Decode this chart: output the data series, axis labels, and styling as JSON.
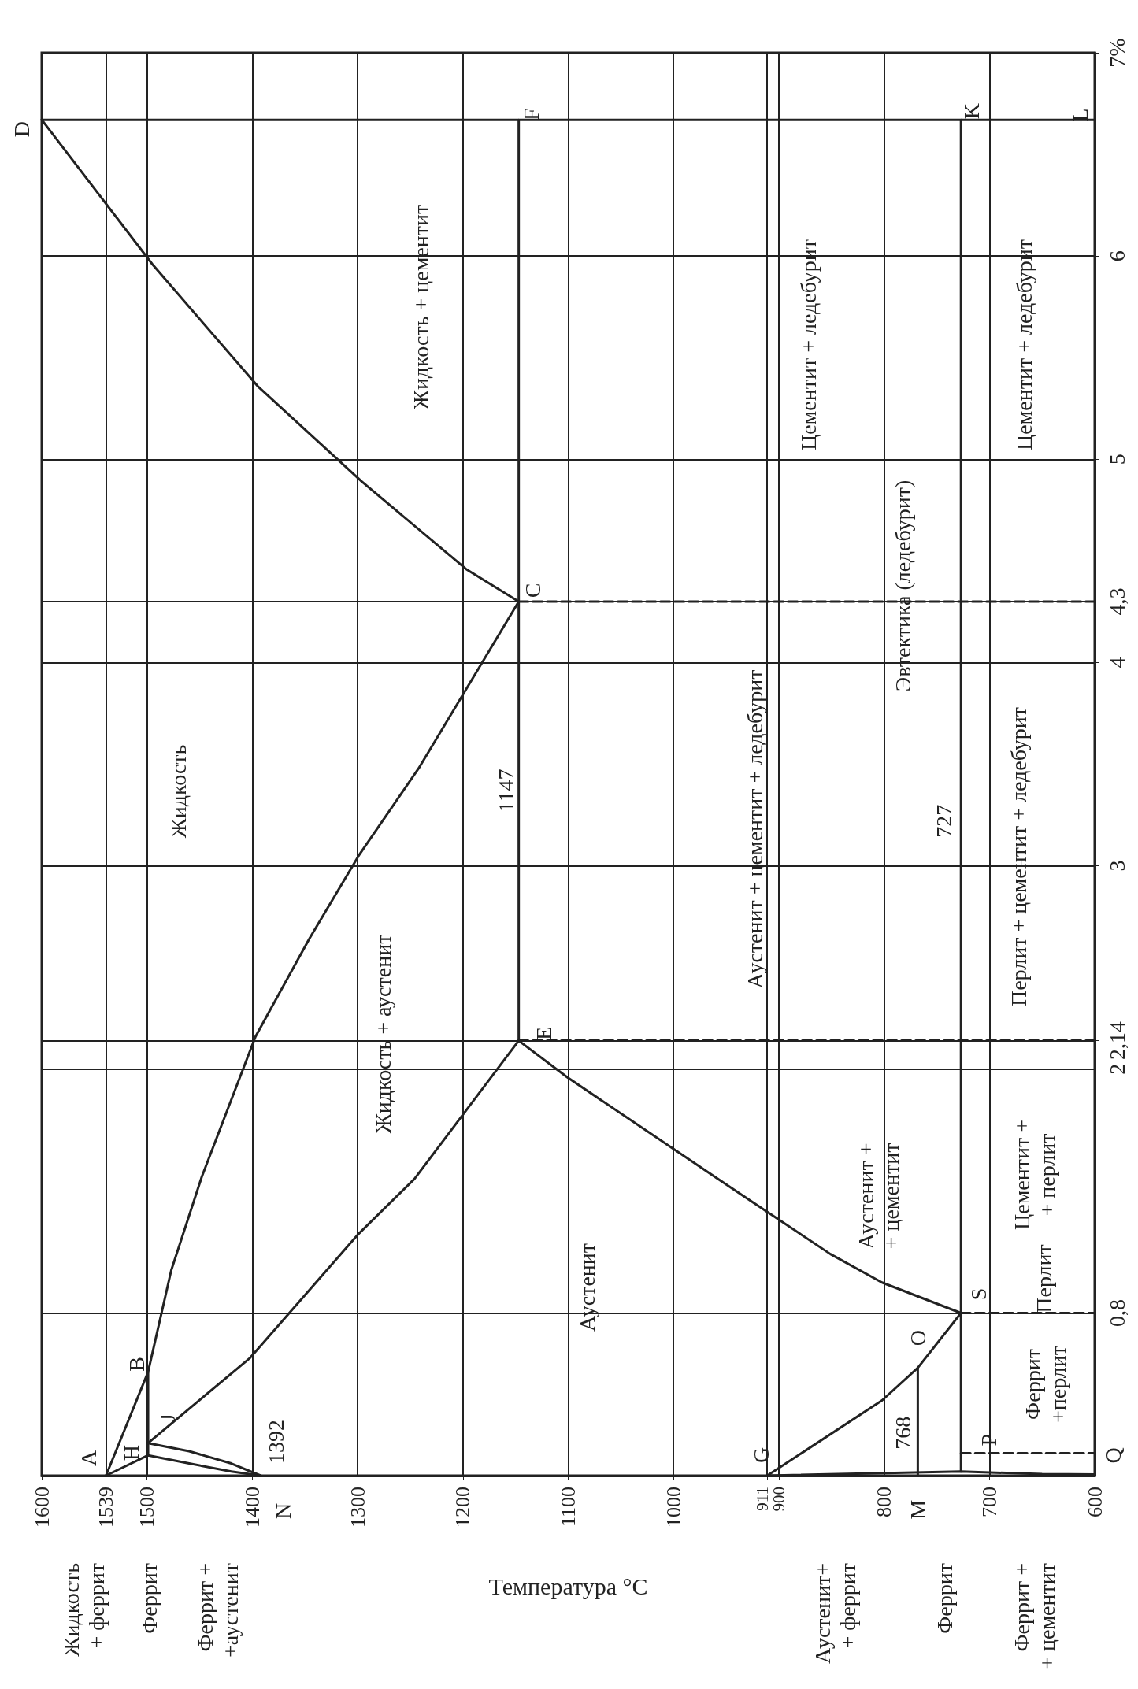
{
  "chart_data": {
    "type": "line",
    "xlabel": "Температура °С",
    "xlim": [
      1600,
      600
    ],
    "ylim": [
      0,
      7
    ],
    "xticks": [
      1600,
      1539,
      1500,
      1400,
      1300,
      1200,
      1100,
      1000,
      911,
      900,
      800,
      700,
      600
    ],
    "yticks": [
      {
        "value": 0.8,
        "label": "0,8"
      },
      2,
      {
        "value": 2.14,
        "label": "2,14"
      },
      3,
      4,
      {
        "value": 4.3,
        "label": "4,3"
      },
      5,
      6,
      {
        "value": 7,
        "label": "7%"
      }
    ],
    "grid": true,
    "marker": "none",
    "series": [
      {
        "color": "#222222",
        "x": [
          1539,
          1499,
          1477,
          1448,
          1397,
          1346,
          1299,
          1242,
          1147
        ],
        "values": [
          0,
          0.51,
          1.01,
          1.47,
          2.16,
          2.64,
          3.05,
          3.48,
          4.3
        ]
      },
      {
        "color": "#222222",
        "x": [
          1147,
          1197,
          1296,
          1395,
          1495,
          1600
        ],
        "values": [
          4.3,
          4.46,
          4.89,
          5.36,
          5.96,
          6.67
        ]
      },
      {
        "color": "#222222",
        "x": [
          1539,
          1499
        ],
        "values": [
          0,
          0.1
        ]
      },
      {
        "color": "#222222",
        "x": [
          1499,
          1499
        ],
        "values": [
          0.1,
          0.51
        ]
      },
      {
        "color": "#222222",
        "x": [
          1499,
          1402,
          1299,
          1246,
          1147
        ],
        "values": [
          0.16,
          0.58,
          1.19,
          1.46,
          2.14
        ]
      },
      {
        "color": "#222222",
        "x": [
          1499,
          1460,
          1420,
          1392
        ],
        "values": [
          0.1,
          0.06,
          0.02,
          0
        ]
      },
      {
        "color": "#222222",
        "x": [
          1499,
          1460,
          1420,
          1392
        ],
        "values": [
          0.16,
          0.12,
          0.06,
          0
        ]
      },
      {
        "color": "#222222",
        "x": [
          1147,
          1147
        ],
        "values": [
          2.14,
          6.67
        ]
      },
      {
        "color": "#222222",
        "x": [
          1147,
          1101,
          958,
          851,
          802,
          727
        ],
        "values": [
          2.14,
          1.96,
          1.46,
          1.09,
          0.95,
          0.8
        ]
      },
      {
        "color": "#222222",
        "x": [
          911,
          802,
          768,
          727
        ],
        "values": [
          0,
          0.37,
          0.53,
          0.8
        ]
      },
      {
        "color": "#222222",
        "x": [
          911,
          727,
          650,
          600
        ],
        "values": [
          0,
          0.02,
          0.008,
          0.006
        ]
      },
      {
        "color": "#222222",
        "x": [
          727,
          727
        ],
        "values": [
          0.02,
          6.67
        ]
      },
      {
        "color": "#222222",
        "x": [
          768,
          768
        ],
        "values": [
          0,
          0.53
        ]
      },
      {
        "color": "#222222",
        "x": [
          1600,
          600
        ],
        "values": [
          6.67,
          6.67
        ]
      },
      {
        "color": "#222222",
        "line_style": "dashed",
        "x": [
          727,
          600
        ],
        "values": [
          0.8,
          0.8
        ]
      },
      {
        "color": "#222222",
        "line_style": "dashed",
        "x": [
          1147,
          600
        ],
        "values": [
          2.14,
          2.14
        ]
      },
      {
        "color": "#222222",
        "line_style": "dashed",
        "x": [
          1147,
          600
        ],
        "values": [
          4.3,
          4.3
        ]
      },
      {
        "color": "#222222",
        "line_style": "dashed",
        "x": [
          727,
          600
        ],
        "values": [
          0.11,
          0.11
        ]
      }
    ],
    "annotations": [
      {
        "text": "A",
        "x": 1539,
        "y": 0
      },
      {
        "text": "H",
        "x": 1499,
        "y": 0.1
      },
      {
        "text": "B",
        "x": 1499,
        "y": 0.51
      },
      {
        "text": "J",
        "x": 1499,
        "y": 0.16
      },
      {
        "text": "1392",
        "x": 1392,
        "y": 0
      },
      {
        "text": "N",
        "x": 1392,
        "y": 0
      },
      {
        "text": "C",
        "x": 1147,
        "y": 4.3
      },
      {
        "text": "E",
        "x": 1147,
        "y": 2.14
      },
      {
        "text": "1147",
        "x": 1147,
        "y": 3.37
      },
      {
        "text": "D",
        "x": 1600,
        "y": 6.67
      },
      {
        "text": "F",
        "x": 1147,
        "y": 6.67
      },
      {
        "text": "K",
        "x": 727,
        "y": 6.67
      },
      {
        "text": "L",
        "x": 600,
        "y": 6.67
      },
      {
        "text": "G",
        "x": 911,
        "y": 0
      },
      {
        "text": "O",
        "x": 768,
        "y": 0.53
      },
      {
        "text": "S",
        "x": 727,
        "y": 0.8
      },
      {
        "text": "P",
        "x": 727,
        "y": 0.02
      },
      {
        "text": "Q",
        "x": 600,
        "y": 0.006
      },
      {
        "text": "M",
        "x": 768,
        "y": 0
      },
      {
        "text": "768",
        "x": 768,
        "y": 0.21
      },
      {
        "text": "727",
        "x": 727,
        "y": 3.22
      },
      "Жидкость",
      "Жидкость + аустенит",
      "Жидкость + цементит",
      "Аустенит",
      "Аустенит +\n+ цементит",
      "Цементит + ледебурит",
      "Цементит + ледебурит",
      "Аустенит + цементит + ледебурит",
      "Перлит + цементит + ледебурит",
      "Цементит +\n+ перлит",
      "Феррит\n+перлит",
      "Перлит",
      "Эвтектика (ледебурит)",
      "Жидкость\n+ феррит",
      "Феррит",
      "Феррит +\n+аустенит",
      "Аустенит+\n+ феррит",
      "Феррит",
      "Феррит +\n+ цементит"
    ]
  }
}
